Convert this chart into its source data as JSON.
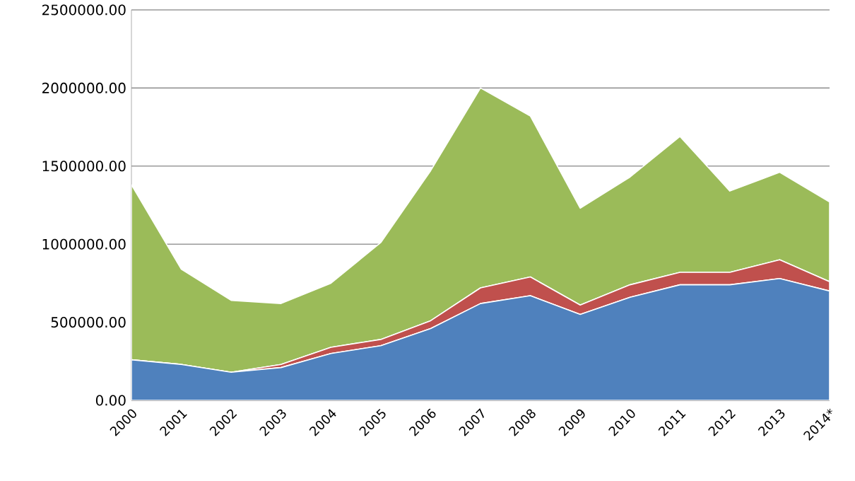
{
  "chart_data": {
    "type": "area",
    "stacked": true,
    "grid": "y",
    "categories": [
      "2000",
      "2001",
      "2002",
      "2003",
      "2004",
      "2005",
      "2006",
      "2007",
      "2008",
      "2009",
      "2010",
      "2011",
      "2012",
      "2013",
      "2014*"
    ],
    "ylim": [
      0,
      2500000
    ],
    "yticks": [
      {
        "value": 0,
        "label": "0.00"
      },
      {
        "value": 500000,
        "label": "500000.00"
      },
      {
        "value": 1000000,
        "label": "1000000.00"
      },
      {
        "value": 1500000,
        "label": "1500000.00"
      },
      {
        "value": 2000000,
        "label": "2000000.00"
      },
      {
        "value": 2500000,
        "label": "2500000.00"
      }
    ],
    "series": [
      {
        "color": "#4f81bd",
        "values": [
          260000,
          230000,
          180000,
          210000,
          300000,
          350000,
          460000,
          620000,
          670000,
          550000,
          660000,
          740000,
          740000,
          780000,
          700000
        ]
      },
      {
        "color": "#c0504d",
        "values": [
          0,
          0,
          0,
          20000,
          40000,
          40000,
          50000,
          100000,
          120000,
          60000,
          80000,
          80000,
          80000,
          120000,
          60000
        ]
      },
      {
        "color": "#9bbb59",
        "values": [
          1120000,
          610000,
          460000,
          390000,
          410000,
          620000,
          960000,
          1280000,
          1030000,
          620000,
          690000,
          870000,
          520000,
          560000,
          510000
        ]
      }
    ]
  }
}
